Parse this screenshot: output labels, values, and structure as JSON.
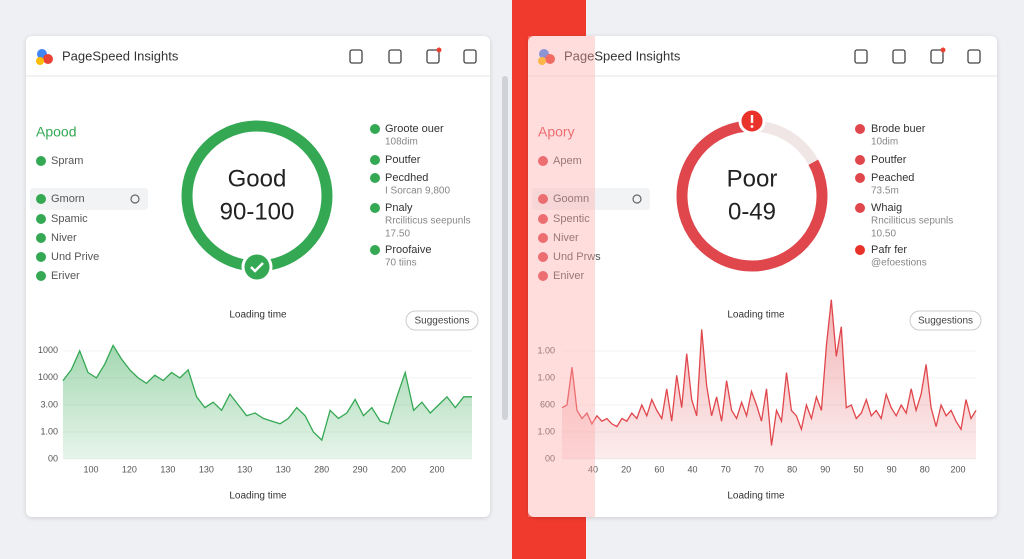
{
  "panels": [
    {
      "header": {
        "title": "PageSpeed Insights"
      },
      "status": "Apood",
      "nav": [
        "Spram",
        "Gmorn",
        "Spamic",
        "Niver",
        "Und Prive",
        "Eriver"
      ],
      "gauge": {
        "label": "Good",
        "range": "90-100"
      },
      "metrics": [
        {
          "name": "Groote ouer",
          "lines": [
            "108dim"
          ]
        },
        {
          "name": "Poutfer",
          "lines": []
        },
        {
          "name": "Pecdhed",
          "lines": [
            "I Sorcan 9,800"
          ]
        },
        {
          "name": "Pnaly",
          "lines": [
            "Rrciliticus seepunls",
            "17.50"
          ]
        },
        {
          "name": "Proofaive",
          "lines": [
            "70 tiins"
          ]
        }
      ],
      "chart": {
        "type": "area",
        "title": "Loading time",
        "button": "Suggestions",
        "xlabel": "Loading time",
        "color": "#34a853",
        "ylim": [
          0,
          4.4
        ],
        "yticks": [
          {
            "value": 4,
            "label": "1000"
          },
          {
            "value": 3,
            "label": "1000"
          },
          {
            "value": 2,
            "label": "3.00"
          },
          {
            "value": 1,
            "label": "1.00"
          },
          {
            "value": 0,
            "label": "00"
          }
        ],
        "xtick_labels": [
          "100",
          "120",
          "130",
          "130",
          "130",
          "130",
          "280",
          "290",
          "200",
          "200"
        ],
        "values": [
          2.9,
          3.3,
          4.0,
          3.2,
          3.0,
          3.5,
          4.2,
          3.7,
          3.3,
          3.0,
          2.8,
          3.1,
          2.9,
          3.2,
          3.0,
          3.3,
          2.3,
          1.9,
          2.1,
          1.8,
          2.4,
          2.0,
          1.6,
          1.7,
          1.5,
          1.4,
          1.3,
          1.5,
          1.9,
          1.6,
          1.0,
          0.7,
          1.8,
          1.5,
          1.7,
          2.2,
          1.6,
          1.9,
          1.4,
          1.3,
          2.3,
          3.2,
          1.8,
          2.1,
          1.7,
          2.0,
          2.3,
          1.9,
          2.3,
          2.3
        ]
      }
    },
    {
      "header": {
        "title": "PageSpeed Insights"
      },
      "status": "Apory",
      "nav": [
        "Apem",
        "Goomn",
        "Spentic",
        "Niver",
        "Und Prws",
        "Eniver"
      ],
      "gauge": {
        "label": "Poor",
        "range": "0-49"
      },
      "metrics": [
        {
          "name": "Brode buer",
          "lines": [
            "10dim"
          ]
        },
        {
          "name": "Poutfer",
          "lines": []
        },
        {
          "name": "Peached",
          "lines": [
            "73.5m"
          ]
        },
        {
          "name": "Whaig",
          "lines": [
            "Rnciliticus sepunls",
            "10.50"
          ]
        },
        {
          "name": "Pafr fer",
          "lines": [
            "@efoestions"
          ]
        }
      ],
      "chart": {
        "type": "area",
        "title": "Loading time",
        "button": "Suggestions",
        "xlabel": "Loading time",
        "color": "#e0474c",
        "ylim": [
          0,
          6
        ],
        "yticks": [
          {
            "value": 4,
            "label": "1.00"
          },
          {
            "value": 3,
            "label": "1.00"
          },
          {
            "value": 2,
            "label": "600"
          },
          {
            "value": 1,
            "label": "1.00"
          },
          {
            "value": 0,
            "label": "00"
          }
        ],
        "xtick_labels": [
          "40",
          "20",
          "60",
          "40",
          "70",
          "70",
          "80",
          "90",
          "50",
          "90",
          "80",
          "200"
        ],
        "values": [
          1.9,
          2.0,
          3.4,
          1.8,
          1.5,
          1.7,
          1.3,
          1.6,
          1.4,
          1.5,
          1.3,
          1.2,
          1.5,
          1.4,
          1.7,
          1.5,
          2.0,
          1.6,
          2.2,
          1.8,
          1.5,
          2.6,
          1.4,
          3.1,
          1.9,
          3.9,
          2.2,
          1.6,
          4.8,
          2.7,
          1.6,
          2.3,
          1.4,
          2.9,
          1.8,
          1.5,
          2.1,
          1.6,
          2.5,
          2.0,
          1.4,
          2.6,
          0.5,
          1.8,
          1.4,
          3.2,
          1.8,
          1.6,
          1.1,
          2.0,
          1.5,
          2.3,
          1.8,
          4.2,
          5.9,
          3.8,
          4.9,
          1.9,
          2.0,
          1.5,
          1.7,
          2.2,
          1.6,
          1.8,
          1.5,
          2.4,
          1.9,
          1.6,
          2.0,
          1.7,
          2.6,
          1.8,
          2.4,
          3.5,
          1.9,
          1.2,
          2.0,
          1.6,
          1.8,
          1.4,
          1.1,
          2.2,
          1.5,
          1.8
        ]
      }
    }
  ]
}
